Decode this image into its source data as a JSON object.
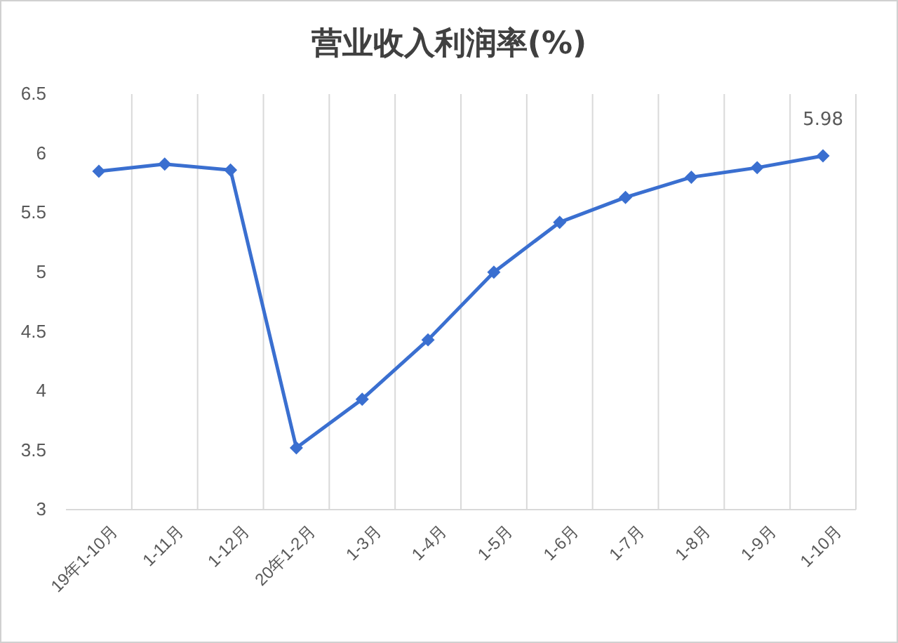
{
  "chart_data": {
    "type": "line",
    "title": "营业收入利润率(%)",
    "categories": [
      "19年1-10月",
      "1-11月",
      "1-12月",
      "20年1-2月",
      "1-3月",
      "1-4月",
      "1-5月",
      "1-6月",
      "1-7月",
      "1-8月",
      "1-9月",
      "1-10月"
    ],
    "series": [
      {
        "color": "#3a6fd0",
        "values": [
          5.85,
          5.91,
          5.86,
          3.52,
          3.93,
          4.43,
          5.0,
          5.42,
          5.63,
          5.8,
          5.88,
          5.98
        ],
        "value_labels": [
          null,
          null,
          null,
          null,
          null,
          null,
          null,
          null,
          null,
          null,
          null,
          "5.98"
        ]
      }
    ],
    "ylim": [
      3,
      6.5
    ],
    "yticks": [
      3,
      3.5,
      4,
      4.5,
      5,
      5.5,
      6,
      6.5
    ],
    "grid": "x",
    "marker": "diamond",
    "line_style": "solid"
  }
}
